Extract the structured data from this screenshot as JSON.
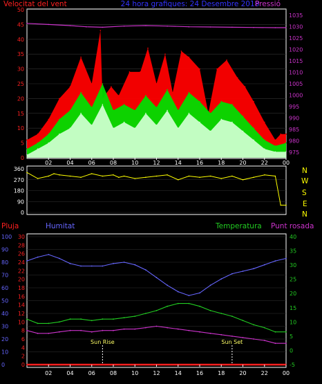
{
  "header": {
    "left_label": "Velocitat del vent",
    "center_label": "24 hora grafiques: 24 Desembre 2018",
    "right_label": "Pressió",
    "wind_color": "#ff2020",
    "pressure_color": "#cc33cc",
    "title_color": "#3333ff"
  },
  "bottom_labels": {
    "rain": "Pluja",
    "humidity": "Humitat",
    "temperature": "Temperatura",
    "dewpoint": "Punt rosada",
    "sunrise": "Sun Rise",
    "sunset": "Sun Set",
    "rain_color": "#ff2020",
    "humidity_color": "#6666ff",
    "temperature_color": "#22cc22",
    "dewpoint_color": "#cc33cc"
  },
  "compass": [
    "N",
    "W",
    "S",
    "E",
    "N"
  ],
  "x_ticks": [
    "02",
    "04",
    "06",
    "08",
    "10",
    "12",
    "14",
    "16",
    "18",
    "20",
    "22",
    "00"
  ],
  "chart_data": [
    {
      "type": "area",
      "name": "wind-speed-pressure",
      "x_range": [
        0,
        24
      ],
      "y_left": {
        "label": "Velocitat del vent",
        "ticks": [
          0,
          5,
          10,
          15,
          20,
          25,
          30,
          35,
          40,
          45,
          50
        ],
        "range": [
          0,
          50
        ]
      },
      "y_right": {
        "label": "Pressió",
        "ticks": [
          975,
          980,
          985,
          990,
          995,
          1000,
          1005,
          1010,
          1015,
          1020,
          1025,
          1030,
          1035
        ],
        "range": [
          972.5,
          1037.5
        ]
      },
      "series": [
        {
          "name": "gust",
          "color": "#ff0000",
          "x": [
            0,
            1,
            2,
            3,
            4,
            5,
            6,
            6.8,
            7,
            7.8,
            8.5,
            9.5,
            10.5,
            11.2,
            12,
            12.8,
            13.5,
            14.3,
            15,
            16,
            16.8,
            17.6,
            18.5,
            19.5,
            20.2,
            21,
            22,
            23,
            23.5,
            24
          ],
          "values": [
            6,
            8,
            13,
            20,
            24,
            34,
            25,
            43,
            20,
            24,
            21,
            29,
            29,
            37,
            25,
            35,
            22,
            36,
            34,
            30,
            15,
            30,
            33,
            27,
            24,
            19,
            12,
            6,
            8,
            8
          ]
        },
        {
          "name": "average",
          "color": "#00dd00",
          "x": [
            0,
            1,
            2,
            3,
            4,
            5,
            6,
            7,
            8,
            9,
            10,
            11,
            12,
            13,
            14,
            15,
            16,
            17,
            18,
            19,
            20,
            21,
            22,
            23,
            24
          ],
          "values": [
            3,
            5,
            8,
            13,
            16,
            22,
            17,
            25,
            16,
            18,
            16,
            21,
            17,
            23,
            16,
            22,
            19,
            15,
            19,
            18,
            14,
            10,
            6,
            4,
            5
          ]
        },
        {
          "name": "speed",
          "color": "#ccffcc",
          "x": [
            0,
            1,
            2,
            3,
            4,
            5,
            6,
            7,
            8,
            9,
            10,
            11,
            12,
            13,
            14,
            15,
            16,
            17,
            18,
            19,
            20,
            21,
            22,
            23,
            24
          ],
          "values": [
            1,
            3,
            5,
            8,
            10,
            15,
            11,
            18,
            10,
            12,
            10,
            15,
            11,
            16,
            10,
            15,
            12,
            9,
            13,
            12,
            9,
            6,
            3,
            2,
            2
          ]
        },
        {
          "name": "pressure",
          "color": "#cc33cc",
          "x": [
            0,
            2,
            4,
            5.5,
            7,
            9,
            11,
            13,
            15,
            17,
            19,
            21,
            23,
            24
          ],
          "values": [
            1031.5,
            1031,
            1030.5,
            1030,
            1029.8,
            1030.3,
            1030.5,
            1030.3,
            1030,
            1029.9,
            1029.8,
            1029.7,
            1029.6,
            1029.6
          ]
        }
      ]
    },
    {
      "type": "line",
      "name": "wind-direction",
      "x_range": [
        0,
        24
      ],
      "y_left": {
        "ticks": [
          0,
          90,
          180,
          270,
          360
        ],
        "range": [
          0,
          360
        ]
      },
      "series": [
        {
          "name": "direction",
          "color": "#ffff00",
          "x": [
            0,
            1,
            2,
            2.5,
            3,
            4,
            5,
            6,
            7,
            8,
            8.5,
            9,
            10,
            11,
            12,
            13,
            14,
            15,
            16,
            17,
            18,
            19,
            20,
            21,
            22,
            23,
            23.5,
            24
          ],
          "values": [
            330,
            280,
            300,
            320,
            310,
            300,
            290,
            320,
            300,
            310,
            290,
            300,
            280,
            290,
            300,
            310,
            270,
            300,
            290,
            300,
            280,
            300,
            270,
            290,
            310,
            300,
            60,
            60
          ]
        }
      ]
    },
    {
      "type": "line",
      "name": "temperature-humidity",
      "x_range": [
        0,
        24
      ],
      "y_axes": {
        "humidity": {
          "ticks": [
            0,
            10,
            20,
            30,
            40,
            50,
            60,
            70,
            80,
            90,
            100
          ],
          "range": [
            0,
            100
          ]
        },
        "rain": {
          "ticks": [
            0,
            2,
            4,
            6,
            8,
            10,
            12,
            14,
            16,
            18,
            20,
            22,
            24,
            26,
            28,
            30
          ],
          "range": [
            0,
            30
          ]
        },
        "temperature": {
          "ticks": [
            -5,
            0,
            5,
            10,
            15,
            20,
            25,
            30,
            35,
            40
          ],
          "range": [
            -5,
            40
          ]
        }
      },
      "series": [
        {
          "name": "Humitat",
          "axis": "humidity",
          "color": "#6666ff",
          "x": [
            0,
            1,
            2,
            3,
            4,
            5,
            6,
            7,
            8,
            9,
            10,
            11,
            12,
            13,
            14,
            15,
            16,
            17,
            18,
            19,
            20,
            21,
            22,
            23,
            24
          ],
          "values": [
            81,
            84,
            86,
            83,
            79,
            77,
            77,
            77,
            79,
            80,
            78,
            74,
            68,
            62,
            57,
            54,
            56,
            62,
            67,
            71,
            73,
            75,
            78,
            81,
            83
          ]
        },
        {
          "name": "Temperatura",
          "axis": "temperature",
          "color": "#22cc22",
          "x": [
            0,
            1,
            2,
            3,
            4,
            5,
            6,
            7,
            8,
            9,
            10,
            11,
            12,
            13,
            14,
            15,
            16,
            17,
            18,
            19,
            20,
            21,
            22,
            23,
            24
          ],
          "values": [
            11,
            9.5,
            9.5,
            10,
            11,
            11,
            10.5,
            11,
            11,
            11.5,
            12,
            13,
            14,
            15.5,
            16.5,
            16.5,
            15.5,
            14,
            13,
            12,
            10.5,
            9,
            8,
            6.5,
            6.5
          ]
        },
        {
          "name": "Punt rosada",
          "axis": "temperature",
          "color": "#cc33cc",
          "x": [
            0,
            1,
            2,
            3,
            4,
            5,
            6,
            7,
            8,
            9,
            10,
            11,
            12,
            13,
            14,
            15,
            16,
            17,
            18,
            19,
            20,
            21,
            22,
            23,
            24
          ],
          "values": [
            7,
            6,
            6,
            6.5,
            7,
            7,
            6.5,
            7,
            7,
            7.5,
            7.5,
            8,
            8.5,
            8,
            7.5,
            7,
            6.5,
            6,
            5.5,
            5,
            4.5,
            4,
            3.5,
            2.5,
            2.5
          ]
        },
        {
          "name": "Pluja",
          "axis": "rain",
          "color": "#ff2020",
          "x": [
            0,
            24
          ],
          "values": [
            0,
            0
          ]
        }
      ],
      "annotations": [
        {
          "text": "Sun Rise",
          "x": 7
        },
        {
          "text": "Sun Set",
          "x": 19
        }
      ]
    }
  ]
}
